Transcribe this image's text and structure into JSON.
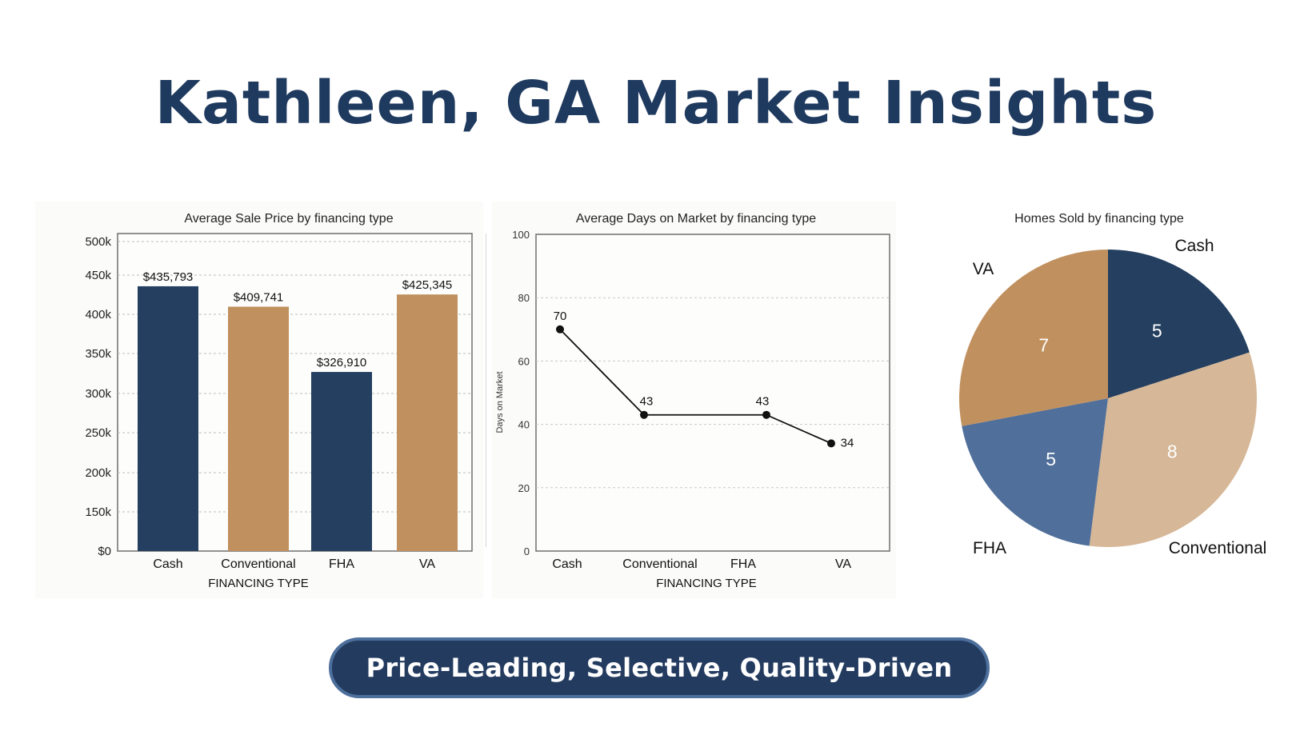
{
  "page": {
    "title": "Kathleen, GA Market Insights",
    "tagline": "Price-Leading, Selective, Quality-Driven"
  },
  "colors": {
    "navy": "#243f5f",
    "tan": "#c0905e",
    "light_tan": "#d6b797",
    "slate_blue": "#506f9a",
    "title": "#1f3a5f"
  },
  "chart_data": [
    {
      "type": "bar",
      "title": "Average Sale Price  by financing type",
      "xlabel": "FINANCING TYPE",
      "ylabel": "",
      "categories": [
        "Cash",
        "Conventional",
        "FHA",
        "VA"
      ],
      "values": [
        435793,
        409741,
        326910,
        425345
      ],
      "data_labels": [
        "$435,793",
        "$409,741",
        "$326,910",
        "$425,345"
      ],
      "bar_colors": [
        "#243f5f",
        "#c0905e",
        "#243f5f",
        "#c0905e"
      ],
      "yticks": [
        {
          "value": 0,
          "label": "$0"
        },
        {
          "value": 150000,
          "label": "150k"
        },
        {
          "value": 200000,
          "label": "200k"
        },
        {
          "value": 250000,
          "label": "250k"
        },
        {
          "value": 300000,
          "label": "300k"
        },
        {
          "value": 350000,
          "label": "350k"
        },
        {
          "value": 400000,
          "label": "400k"
        },
        {
          "value": 450000,
          "label": "450k"
        },
        {
          "value": 500000,
          "label": "500k"
        }
      ],
      "grid": true
    },
    {
      "type": "line",
      "title": "Average Days on Market  by financing type",
      "xlabel": "FINANCING TYPE",
      "ylabel": "Days on Market",
      "categories": [
        "Cash",
        "Conventional",
        "FHA",
        "VA"
      ],
      "values": [
        70,
        43,
        43,
        34
      ],
      "data_labels": [
        "70",
        "43",
        "43",
        "34"
      ],
      "ylim": [
        0,
        100
      ],
      "yticks": [
        0,
        20,
        40,
        60,
        80,
        100
      ],
      "grid": true
    },
    {
      "type": "pie",
      "title": "Homes Sold by financing type",
      "labels": [
        "Cash",
        "Conventional",
        "FHA",
        "VA"
      ],
      "values": [
        5,
        8,
        5,
        7
      ],
      "colors": [
        "#243f5f",
        "#d6b797",
        "#506f9a",
        "#c0905e"
      ]
    }
  ]
}
